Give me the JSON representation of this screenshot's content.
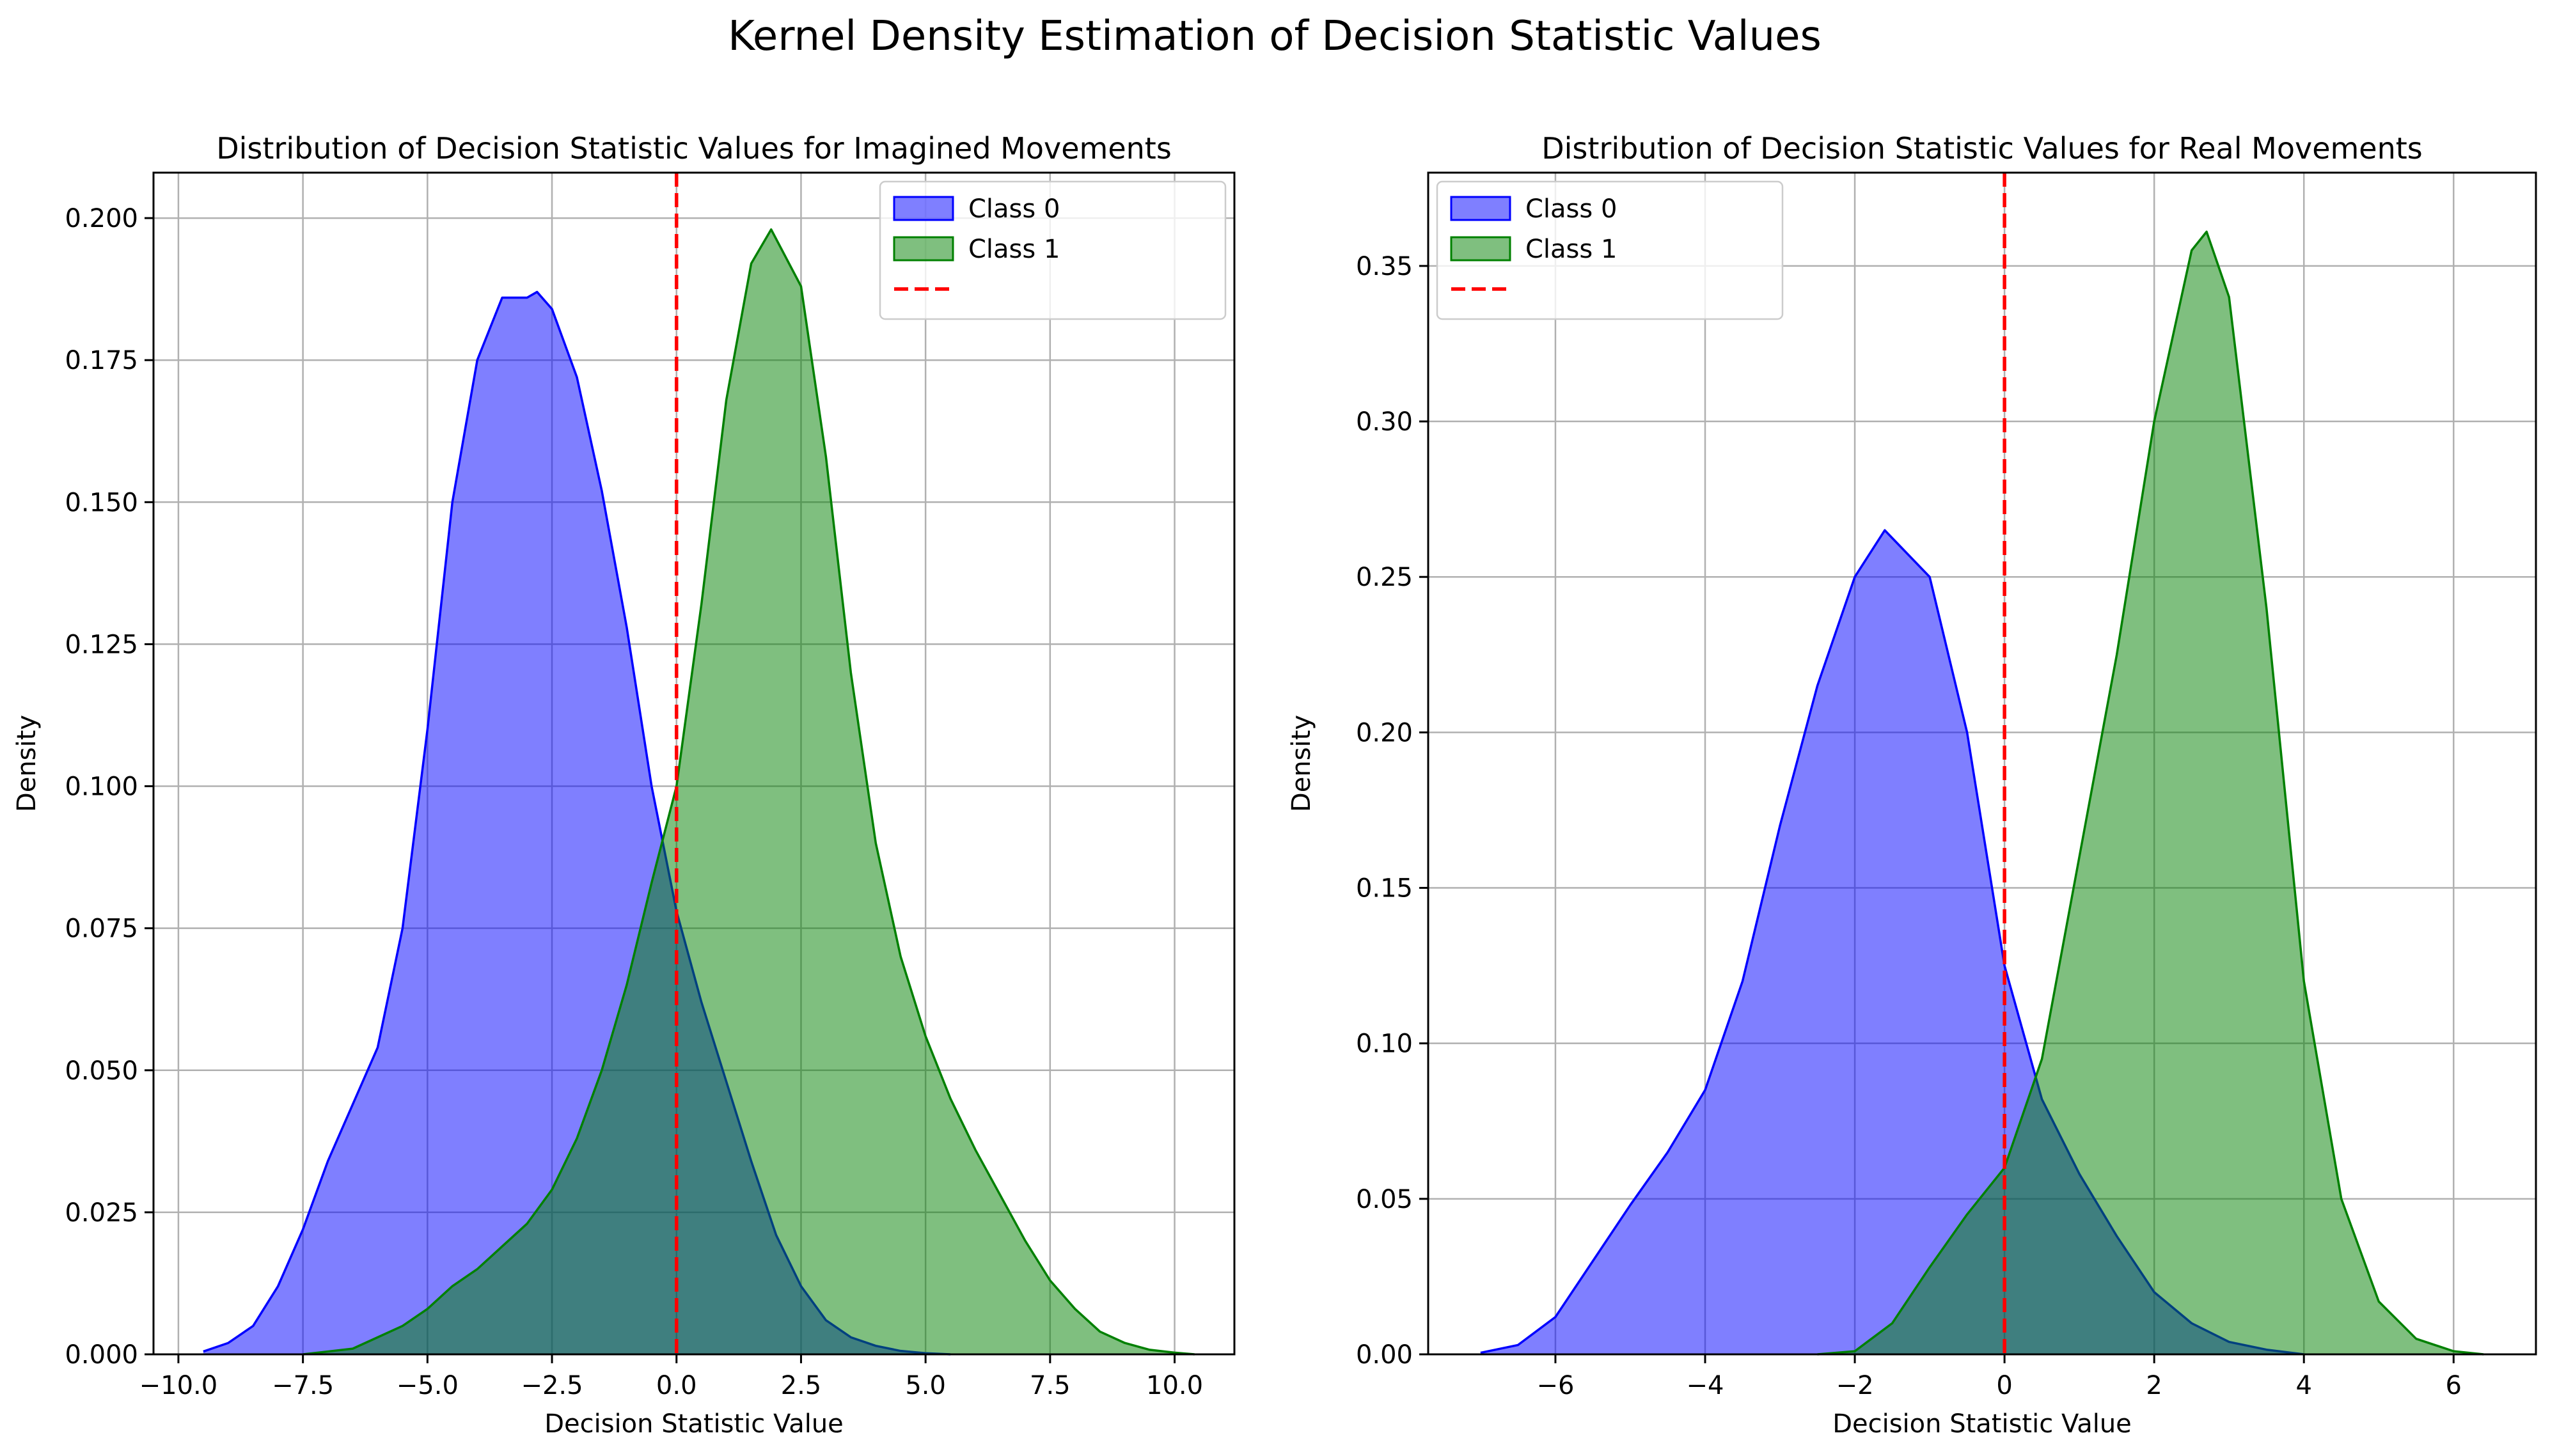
{
  "figure": {
    "suptitle": "Kernel Density Estimation of Decision Statistic Values"
  },
  "colors": {
    "class0_fill": "#0000ff",
    "class0_edge": "#0000ff",
    "class1_fill": "#008000",
    "class1_edge": "#008000",
    "boundary": "#ff0000",
    "grid": "#b0b0b0"
  },
  "chart_data": [
    {
      "type": "area",
      "title": "Distribution of Decision Statistic Values for Imagined Movements",
      "xlabel": "Decision Statistic Value",
      "ylabel": "Density",
      "xlim": [
        -10.5,
        11.2
      ],
      "ylim": [
        0,
        0.208
      ],
      "xticks": [
        -10,
        -7.5,
        -5,
        -2.5,
        0,
        2.5,
        5,
        7.5,
        10
      ],
      "xtick_labels": [
        "−10.0",
        "−7.5",
        "−5.0",
        "−2.5",
        "0.0",
        "2.5",
        "5.0",
        "7.5",
        "10.0"
      ],
      "yticks": [
        0,
        0.025,
        0.05,
        0.075,
        0.1,
        0.125,
        0.15,
        0.175,
        0.2
      ],
      "ytick_labels": [
        "0.000",
        "0.025",
        "0.050",
        "0.075",
        "0.100",
        "0.125",
        "0.150",
        "0.175",
        "0.200"
      ],
      "grid": true,
      "legend_position": "upper right",
      "decision_boundary_x": 0,
      "series": [
        {
          "name": "Class 0",
          "x": [
            -9.5,
            -9.0,
            -8.5,
            -8.0,
            -7.5,
            -7.0,
            -6.5,
            -6.0,
            -5.5,
            -5.0,
            -4.5,
            -4.0,
            -3.5,
            -3.0,
            -2.8,
            -2.5,
            -2.0,
            -1.5,
            -1.0,
            -0.5,
            0.0,
            0.5,
            1.0,
            1.5,
            2.0,
            2.5,
            3.0,
            3.5,
            4.0,
            4.5,
            5.0,
            5.5
          ],
          "y": [
            0.0005,
            0.002,
            0.005,
            0.012,
            0.022,
            0.034,
            0.044,
            0.054,
            0.075,
            0.11,
            0.15,
            0.175,
            0.186,
            0.186,
            0.187,
            0.184,
            0.172,
            0.152,
            0.128,
            0.1,
            0.078,
            0.062,
            0.048,
            0.034,
            0.021,
            0.012,
            0.006,
            0.003,
            0.0015,
            0.0006,
            0.0002,
            0.0
          ]
        },
        {
          "name": "Class 1",
          "x": [
            -7.5,
            -7.0,
            -6.5,
            -6.0,
            -5.5,
            -5.0,
            -4.5,
            -4.0,
            -3.5,
            -3.0,
            -2.5,
            -2.0,
            -1.5,
            -1.0,
            -0.5,
            0.0,
            0.5,
            1.0,
            1.5,
            1.9,
            2.5,
            3.0,
            3.5,
            4.0,
            4.5,
            5.0,
            5.5,
            6.0,
            6.5,
            7.0,
            7.5,
            8.0,
            8.5,
            9.0,
            9.5,
            10.0,
            10.4
          ],
          "y": [
            0.0,
            0.0005,
            0.001,
            0.003,
            0.005,
            0.008,
            0.012,
            0.015,
            0.019,
            0.023,
            0.029,
            0.038,
            0.05,
            0.065,
            0.083,
            0.1,
            0.132,
            0.168,
            0.192,
            0.198,
            0.188,
            0.158,
            0.12,
            0.09,
            0.07,
            0.056,
            0.045,
            0.036,
            0.028,
            0.02,
            0.013,
            0.008,
            0.004,
            0.002,
            0.0008,
            0.0003,
            0.0
          ]
        }
      ]
    },
    {
      "type": "area",
      "title": "Distribution of Decision Statistic Values for Real Movements",
      "xlabel": "Decision Statistic Value",
      "ylabel": "Density",
      "xlim": [
        -7.7,
        7.1
      ],
      "ylim": [
        0,
        0.38
      ],
      "xticks": [
        -6,
        -4,
        -2,
        0,
        2,
        4,
        6
      ],
      "xtick_labels": [
        "−6",
        "−4",
        "−2",
        "0",
        "2",
        "4",
        "6"
      ],
      "yticks": [
        0,
        0.05,
        0.1,
        0.15,
        0.2,
        0.25,
        0.3,
        0.35
      ],
      "ytick_labels": [
        "0.00",
        "0.05",
        "0.10",
        "0.15",
        "0.20",
        "0.25",
        "0.30",
        "0.35"
      ],
      "grid": true,
      "legend_position": "upper left",
      "decision_boundary_x": 0,
      "series": [
        {
          "name": "Class 0",
          "x": [
            -7.0,
            -6.5,
            -6.0,
            -5.5,
            -5.0,
            -4.5,
            -4.0,
            -3.5,
            -3.0,
            -2.5,
            -2.0,
            -1.6,
            -1.0,
            -0.5,
            0.0,
            0.5,
            1.0,
            1.5,
            2.0,
            2.5,
            3.0,
            3.5,
            4.0
          ],
          "y": [
            0.0005,
            0.003,
            0.012,
            0.03,
            0.048,
            0.065,
            0.085,
            0.12,
            0.17,
            0.215,
            0.25,
            0.265,
            0.25,
            0.2,
            0.125,
            0.082,
            0.058,
            0.038,
            0.02,
            0.01,
            0.004,
            0.0015,
            0.0
          ]
        },
        {
          "name": "Class 1",
          "x": [
            -2.5,
            -2.0,
            -1.5,
            -1.0,
            -0.5,
            0.0,
            0.5,
            1.0,
            1.5,
            2.0,
            2.5,
            2.7,
            3.0,
            3.5,
            4.0,
            4.5,
            5.0,
            5.5,
            6.0,
            6.4
          ],
          "y": [
            0.0,
            0.001,
            0.01,
            0.028,
            0.045,
            0.06,
            0.095,
            0.16,
            0.225,
            0.3,
            0.355,
            0.361,
            0.34,
            0.24,
            0.12,
            0.05,
            0.017,
            0.005,
            0.001,
            0.0
          ]
        }
      ]
    }
  ]
}
